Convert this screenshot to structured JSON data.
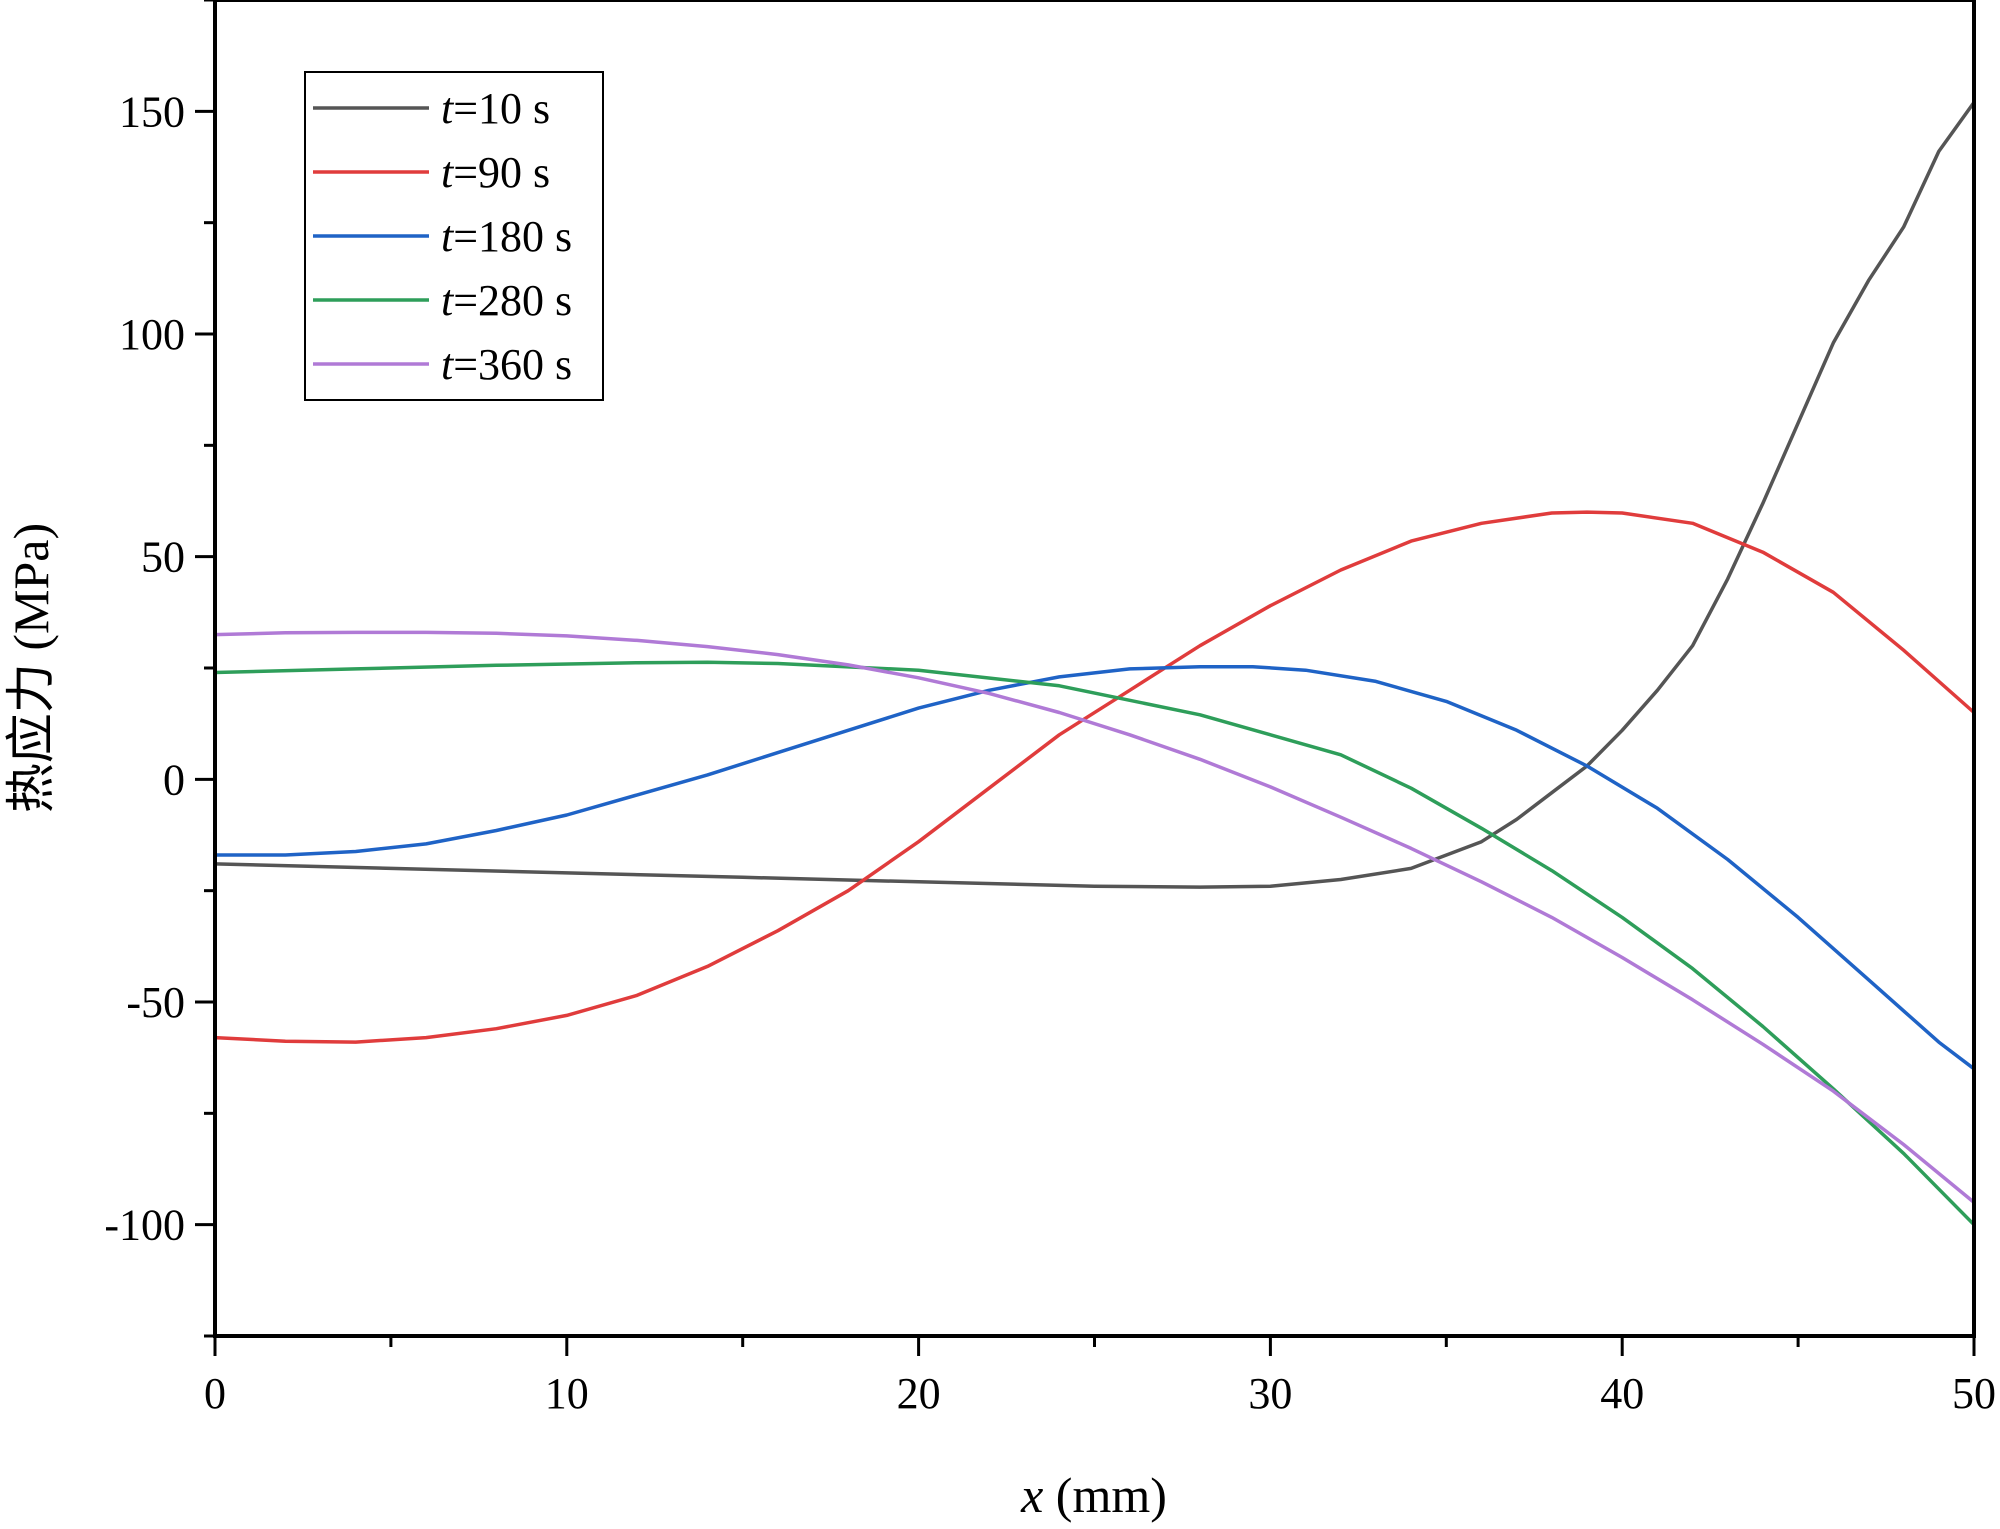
{
  "chart_data": {
    "type": "line",
    "title": "",
    "xlabel": {
      "var": "x",
      "unit": " (mm)"
    },
    "ylabel": "热应力 (MPa)",
    "xlim": [
      0,
      50
    ],
    "ylim": [
      -125,
      175
    ],
    "xticks": [
      0,
      10,
      20,
      30,
      40,
      50
    ],
    "xticks_minor": [
      5,
      15,
      25,
      35,
      45
    ],
    "yticks": [
      -100,
      -50,
      0,
      50,
      100,
      150
    ],
    "yticks_minor": [
      -125,
      -75,
      -25,
      25,
      75,
      125,
      175
    ],
    "grid": false,
    "legend_position": "top-left",
    "series": [
      {
        "name": "t=10 s",
        "label_var": "t",
        "label_rest": "=10 s",
        "color": "#555555",
        "x": [
          0,
          5,
          10,
          15,
          20,
          25,
          28,
          30,
          32,
          34,
          36,
          37,
          38,
          39,
          40,
          41,
          42,
          43,
          44,
          45,
          46,
          47,
          48,
          49,
          50
        ],
        "y": [
          -19,
          -20,
          -21,
          -22,
          -23,
          -24,
          -24.2,
          -24,
          -22.5,
          -20,
          -14,
          -9,
          -3,
          3,
          11,
          20,
          30,
          45,
          62,
          80,
          98,
          112,
          124,
          141,
          152
        ]
      },
      {
        "name": "t=90 s",
        "label_var": "t",
        "label_rest": "=90 s",
        "color": "#e03c3c",
        "x": [
          0,
          2,
          4,
          6,
          8,
          10,
          12,
          14,
          16,
          18,
          20,
          22,
          24,
          26,
          28,
          30,
          32,
          34,
          36,
          38,
          39,
          40,
          42,
          44,
          46,
          48,
          50
        ],
        "y": [
          -58,
          -58.8,
          -59,
          -58,
          -56,
          -53,
          -48.5,
          -42,
          -34,
          -25,
          -14,
          -2,
          10,
          20,
          30,
          39,
          47,
          53.5,
          57.5,
          59.8,
          60,
          59.8,
          57.5,
          51,
          42,
          29,
          15
        ]
      },
      {
        "name": "t=180 s",
        "label_var": "t",
        "label_rest": "=180 s",
        "color": "#1f63c6",
        "x": [
          0,
          2,
          4,
          6,
          8,
          10,
          12,
          14,
          16,
          18,
          20,
          22,
          24,
          26,
          28,
          29.5,
          31,
          33,
          35,
          37,
          39,
          41,
          43,
          45,
          47,
          49,
          50
        ],
        "y": [
          -17,
          -17,
          -16.2,
          -14.5,
          -11.5,
          -8,
          -3.5,
          1,
          6,
          11,
          16,
          20,
          23,
          24.8,
          25.3,
          25.3,
          24.5,
          22,
          17.5,
          11,
          3,
          -6.5,
          -18,
          -31,
          -45,
          -59,
          -65
        ]
      },
      {
        "name": "t=280 s",
        "label_var": "t",
        "label_rest": "=280 s",
        "color": "#2e9e5a",
        "x": [
          0,
          4,
          8,
          12,
          14,
          16,
          20,
          24,
          28,
          32,
          34,
          36,
          38,
          40,
          42,
          44,
          46,
          48,
          50
        ],
        "y": [
          24,
          24.8,
          25.6,
          26.2,
          26.3,
          26,
          24.5,
          21,
          14.5,
          5.5,
          -2,
          -11,
          -20.5,
          -31,
          -42.5,
          -55.5,
          -69.5,
          -84,
          -100
        ]
      },
      {
        "name": "t=360 s",
        "label_var": "t",
        "label_rest": "=360 s",
        "color": "#b07ad6",
        "x": [
          0,
          2,
          4,
          5,
          6,
          8,
          10,
          12,
          14,
          16,
          18,
          20,
          22,
          24,
          26,
          28,
          30,
          32,
          34,
          36,
          38,
          40,
          42,
          44,
          46,
          48,
          50
        ],
        "y": [
          32.5,
          32.9,
          33,
          33,
          33,
          32.8,
          32.2,
          31.2,
          29.8,
          28,
          25.7,
          22.8,
          19.3,
          15,
          10,
          4.5,
          -1.7,
          -8.5,
          -15.5,
          -23,
          -31,
          -40,
          -49.5,
          -59.5,
          -70,
          -82,
          -95
        ]
      }
    ]
  }
}
